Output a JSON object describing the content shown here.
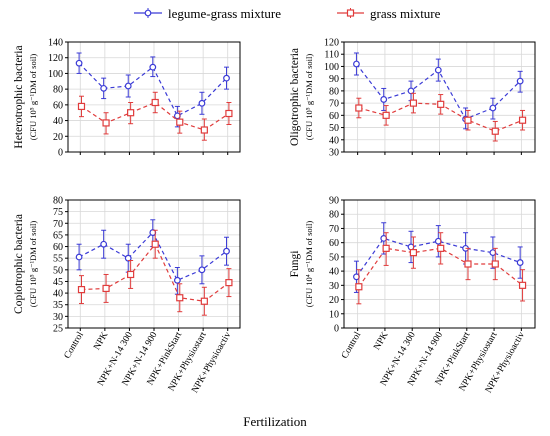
{
  "legend": [
    {
      "label": "legume-grass mixture",
      "color": "#3b3bd6"
    },
    {
      "label": "grass mixture",
      "color": "#e03c3c"
    }
  ],
  "figure_xlabel": "Fertilization",
  "chart_data": [
    {
      "type": "line",
      "id": "heterotrophic",
      "ylabel_main": "Heterotrophic bacteria",
      "ylabel_sub": "(CFU 10⁵ g⁻¹DM of soil)",
      "categories": [
        "Control",
        "NPK",
        "NPK+N-14 300",
        "NPK+N-14 900",
        "NPK+PinkStart",
        "NPK+Physiostart",
        "NPK+Physioactiv"
      ],
      "show_category_labels": false,
      "ylim": [
        0,
        140
      ],
      "yticks": [
        0,
        20,
        40,
        60,
        80,
        100,
        120,
        140
      ],
      "grid": true,
      "series": [
        {
          "name": "legume-grass mixture",
          "color": "#3b3bd6",
          "marker": "circle",
          "values": [
            113,
            81,
            84,
            108,
            46,
            62,
            94
          ],
          "lower": [
            100,
            68,
            70,
            96,
            32,
            48,
            80
          ],
          "upper": [
            126,
            94,
            98,
            121,
            58,
            76,
            108
          ]
        },
        {
          "name": "grass mixture",
          "color": "#e03c3c",
          "marker": "square",
          "values": [
            58,
            37,
            50,
            63,
            38,
            28,
            49
          ],
          "lower": [
            45,
            23,
            36,
            50,
            24,
            15,
            35
          ],
          "upper": [
            71,
            50,
            63,
            76,
            52,
            42,
            63
          ]
        }
      ]
    },
    {
      "type": "line",
      "id": "oligotrophic",
      "ylabel_main": "Oligotrophic bacteria",
      "ylabel_sub": "(CFU 10⁵ g⁻¹DM of soil)",
      "categories": [
        "Control",
        "NPK",
        "NPK+N-14 300",
        "NPK+N-14 900",
        "NPK+PinkStart",
        "NPK+Physiostart",
        "NPK+Physioactiv"
      ],
      "show_category_labels": false,
      "ylim": [
        30,
        120
      ],
      "yticks": [
        30,
        40,
        50,
        60,
        70,
        80,
        90,
        100,
        110,
        120
      ],
      "grid": true,
      "series": [
        {
          "name": "legume-grass mixture",
          "color": "#3b3bd6",
          "marker": "circle",
          "values": [
            102,
            73,
            80,
            97,
            57,
            66,
            88
          ],
          "lower": [
            93,
            64,
            72,
            88,
            49,
            57,
            79
          ],
          "upper": [
            111,
            82,
            88,
            106,
            66,
            74,
            96
          ]
        },
        {
          "name": "grass mixture",
          "color": "#e03c3c",
          "marker": "square",
          "values": [
            66,
            60,
            70,
            69,
            56,
            47,
            56
          ],
          "lower": [
            58,
            52,
            62,
            61,
            48,
            39,
            48
          ],
          "upper": [
            74,
            68,
            78,
            77,
            64,
            55,
            64
          ]
        }
      ]
    },
    {
      "type": "line",
      "id": "copiotrophic",
      "ylabel_main": "Copiotrophic bacteria",
      "ylabel_sub": "(CFU 10⁵ g⁻¹DM of soil)",
      "categories": [
        "Control",
        "NPK",
        "NPK+N-14 300",
        "NPK+N-14 900",
        "NPK+PinkStart",
        "NPK+Physiostart",
        "NPK+Physioactiv"
      ],
      "show_category_labels": true,
      "ylim": [
        25,
        80
      ],
      "yticks": [
        25,
        30,
        35,
        40,
        45,
        50,
        55,
        60,
        65,
        70,
        75,
        80
      ],
      "grid": true,
      "series": [
        {
          "name": "legume-grass mixture",
          "color": "#3b3bd6",
          "marker": "circle",
          "values": [
            55.5,
            61,
            55,
            66,
            45.5,
            50,
            58
          ],
          "lower": [
            50,
            55,
            49,
            60,
            39.5,
            44,
            52
          ],
          "upper": [
            61,
            67,
            61,
            71.5,
            51,
            56,
            64
          ]
        },
        {
          "name": "grass mixture",
          "color": "#e03c3c",
          "marker": "square",
          "values": [
            41.5,
            42,
            48,
            61,
            38,
            36.5,
            44.5
          ],
          "lower": [
            35.5,
            36,
            42,
            55,
            32,
            30.5,
            38.5
          ],
          "upper": [
            47.5,
            48,
            54,
            67,
            44,
            42.5,
            50.5
          ]
        }
      ]
    },
    {
      "type": "line",
      "id": "fungi",
      "ylabel_main": "Fungi",
      "ylabel_sub": "(CFU 10⁴ g⁻¹DM of soil)",
      "categories": [
        "Control",
        "NPK",
        "NPK+N-14 300",
        "NPK+N-14 900",
        "NPK+PinkStart",
        "NPK+Physiostart",
        "NPK+Physioactiv"
      ],
      "show_category_labels": true,
      "ylim": [
        0,
        90
      ],
      "yticks": [
        0,
        10,
        20,
        30,
        40,
        50,
        60,
        70,
        80,
        90
      ],
      "grid": true,
      "series": [
        {
          "name": "legume-grass mixture",
          "color": "#3b3bd6",
          "marker": "circle",
          "values": [
            36,
            63,
            57,
            61,
            56,
            53,
            46
          ],
          "lower": [
            25,
            52,
            46,
            50,
            45,
            42,
            35
          ],
          "upper": [
            47,
            74,
            68,
            72,
            67,
            64,
            57
          ]
        },
        {
          "name": "grass mixture",
          "color": "#e03c3c",
          "marker": "square",
          "values": [
            29,
            56,
            53,
            56,
            45,
            45,
            30
          ],
          "lower": [
            17,
            44,
            42,
            45,
            34,
            34,
            19
          ],
          "upper": [
            41,
            67,
            64,
            67,
            56,
            56,
            41
          ]
        }
      ]
    }
  ]
}
